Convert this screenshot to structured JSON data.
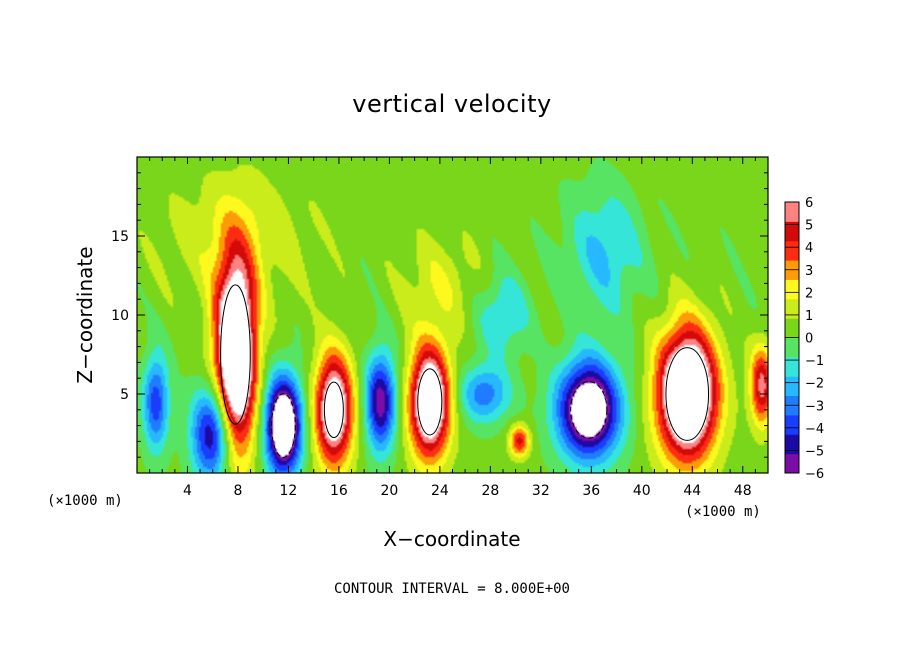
{
  "chart_data": {
    "type": "heatmap",
    "title": "vertical velocity",
    "xlabel": "X−coordinate",
    "ylabel": "Z−coordinate",
    "x_unit_label_left": "(×1000 m)",
    "x_unit_label_right": "(×1000 m)",
    "xlim": [
      0,
      50
    ],
    "ylim": [
      0,
      20
    ],
    "x_ticks": [
      "4",
      "8",
      "12",
      "16",
      "20",
      "24",
      "28",
      "32",
      "36",
      "40",
      "44",
      "48"
    ],
    "x_tick_values": [
      4,
      8,
      12,
      16,
      20,
      24,
      28,
      32,
      36,
      40,
      44,
      48
    ],
    "y_ticks": [
      "5",
      "10",
      "15"
    ],
    "y_tick_values": [
      5,
      10,
      15
    ],
    "colorbar": {
      "min": -6,
      "max": 6,
      "labels": [
        "6",
        "5",
        "4",
        "3",
        "2",
        "1",
        "0",
        "−1",
        "−2",
        "−3",
        "−4",
        "−5",
        "−6"
      ],
      "label_values": [
        6,
        5,
        4,
        3,
        2,
        1,
        0,
        -1,
        -2,
        -3,
        -4,
        -5,
        -6
      ]
    },
    "cells": [
      {
        "x": 6.0,
        "z": 2.5,
        "sign": -1,
        "amp": 7,
        "rx": 1.6,
        "rz": 3.0
      },
      {
        "x": 7.8,
        "z": 7.5,
        "sign": 1,
        "amp": 12,
        "rx": 1.6,
        "rz": 6.0
      },
      {
        "x": 11.6,
        "z": 3.0,
        "sign": -1,
        "amp": 11,
        "rx": 1.4,
        "rz": 3.0
      },
      {
        "x": 15.6,
        "z": 4.0,
        "sign": 1,
        "amp": 9,
        "rx": 1.5,
        "rz": 3.5
      },
      {
        "x": 19.3,
        "z": 4.5,
        "sign": -1,
        "amp": 7,
        "rx": 1.2,
        "rz": 3.0
      },
      {
        "x": 23.2,
        "z": 4.5,
        "sign": 1,
        "amp": 10,
        "rx": 1.6,
        "rz": 3.5
      },
      {
        "x": 30.3,
        "z": 2.0,
        "sign": 1,
        "amp": 5,
        "rx": 0.8,
        "rz": 1.0
      },
      {
        "x": 35.8,
        "z": 4.0,
        "sign": -1,
        "amp": 10,
        "rx": 2.4,
        "rz": 3.0
      },
      {
        "x": 43.6,
        "z": 5.0,
        "sign": 1,
        "amp": 12,
        "rx": 2.3,
        "rz": 4.0
      },
      {
        "x": 49.5,
        "z": 5.5,
        "sign": 1,
        "amp": 6,
        "rx": 0.9,
        "rz": 2.5
      },
      {
        "x": 1.5,
        "z": 4.5,
        "sign": -1,
        "amp": 5,
        "rx": 1.0,
        "rz": 3.0
      },
      {
        "x": 37.0,
        "z": 14.0,
        "sign": -1,
        "amp": 2.5,
        "rx": 3.0,
        "rz": 4.0
      },
      {
        "x": 29.0,
        "z": 10.0,
        "sign": -1,
        "amp": 2.5,
        "rx": 2.0,
        "rz": 2.5
      },
      {
        "x": 27.5,
        "z": 5.0,
        "sign": -1,
        "amp": 4,
        "rx": 2.0,
        "rz": 1.8
      },
      {
        "x": 8.0,
        "z": 15.0,
        "sign": 1,
        "amp": 1.5,
        "rx": 6.0,
        "rz": 4.0
      },
      {
        "x": 24.0,
        "z": 12.0,
        "sign": 1,
        "amp": 1.5,
        "rx": 3.0,
        "rz": 3.0
      }
    ],
    "grid": false
  },
  "footer": {
    "contour_interval_text": "CONTOUR INTERVAL = 8.000E+00"
  }
}
